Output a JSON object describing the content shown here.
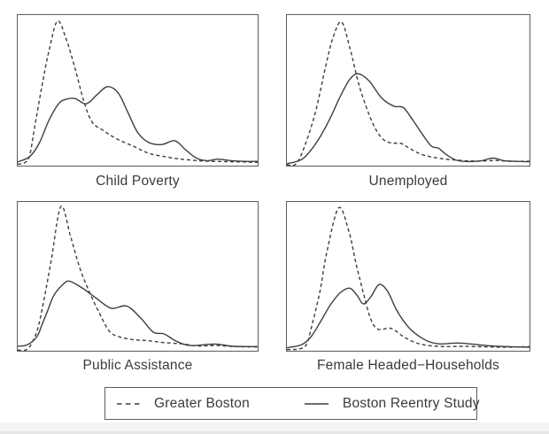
{
  "figure": {
    "background": "#ffffff",
    "colors": {
      "line": "#3e3e3e",
      "frame": "#5c5c5c",
      "text": "#3a3a3a",
      "footer_band": "#f5f3f4",
      "footer_edge": "#e8e6e7"
    },
    "legend": {
      "entries": [
        {
          "label": "Greater Boston",
          "style": "dashed"
        },
        {
          "label": "Boston Reentry Study",
          "style": "solid"
        }
      ]
    }
  },
  "chart_data": [
    {
      "type": "line",
      "title": "Child Poverty",
      "xlabel": "",
      "ylabel": "",
      "axes": "hidden (framed density panel, normalized 0-1 coords, y = relative density height)",
      "series": [
        {
          "name": "Greater Boston",
          "style": "dashed",
          "points": [
            [
              0,
              0.01
            ],
            [
              0.03,
              0.02
            ],
            [
              0.05,
              0.07
            ],
            [
              0.07,
              0.25
            ],
            [
              0.1,
              0.52
            ],
            [
              0.13,
              0.76
            ],
            [
              0.165,
              0.96
            ],
            [
              0.2,
              0.85
            ],
            [
              0.24,
              0.64
            ],
            [
              0.275,
              0.43
            ],
            [
              0.31,
              0.29
            ],
            [
              0.36,
              0.23
            ],
            [
              0.41,
              0.18
            ],
            [
              0.48,
              0.13
            ],
            [
              0.55,
              0.08
            ],
            [
              0.63,
              0.055
            ],
            [
              0.7,
              0.04
            ],
            [
              0.78,
              0.03
            ],
            [
              0.86,
              0.027
            ],
            [
              0.93,
              0.025
            ],
            [
              1,
              0.022
            ]
          ]
        },
        {
          "name": "Boston Reentry Study",
          "style": "solid",
          "points": [
            [
              0,
              0.025
            ],
            [
              0.05,
              0.06
            ],
            [
              0.09,
              0.15
            ],
            [
              0.13,
              0.3
            ],
            [
              0.17,
              0.41
            ],
            [
              0.2,
              0.44
            ],
            [
              0.24,
              0.445
            ],
            [
              0.285,
              0.41
            ],
            [
              0.33,
              0.47
            ],
            [
              0.375,
              0.525
            ],
            [
              0.42,
              0.48
            ],
            [
              0.46,
              0.35
            ],
            [
              0.5,
              0.22
            ],
            [
              0.545,
              0.155
            ],
            [
              0.6,
              0.14
            ],
            [
              0.655,
              0.165
            ],
            [
              0.7,
              0.105
            ],
            [
              0.745,
              0.05
            ],
            [
              0.79,
              0.033
            ],
            [
              0.835,
              0.043
            ],
            [
              0.89,
              0.033
            ],
            [
              0.95,
              0.028
            ],
            [
              1,
              0.028
            ]
          ]
        }
      ]
    },
    {
      "type": "line",
      "title": "Unemployed",
      "xlabel": "",
      "ylabel": "",
      "axes": "hidden (framed density panel, normalized 0-1 coords, y = relative density height)",
      "series": [
        {
          "name": "Greater Boston",
          "style": "dashed",
          "points": [
            [
              0,
              0.005
            ],
            [
              0.04,
              0.015
            ],
            [
              0.08,
              0.16
            ],
            [
              0.12,
              0.37
            ],
            [
              0.16,
              0.66
            ],
            [
              0.19,
              0.85
            ],
            [
              0.225,
              0.955
            ],
            [
              0.26,
              0.78
            ],
            [
              0.3,
              0.52
            ],
            [
              0.35,
              0.295
            ],
            [
              0.39,
              0.185
            ],
            [
              0.43,
              0.15
            ],
            [
              0.47,
              0.148
            ],
            [
              0.51,
              0.11
            ],
            [
              0.56,
              0.072
            ],
            [
              0.63,
              0.048
            ],
            [
              0.71,
              0.035
            ],
            [
              0.79,
              0.03
            ],
            [
              0.86,
              0.034
            ],
            [
              0.93,
              0.028
            ],
            [
              1,
              0.03
            ]
          ]
        },
        {
          "name": "Boston Reentry Study",
          "style": "solid",
          "points": [
            [
              0,
              0.012
            ],
            [
              0.06,
              0.04
            ],
            [
              0.1,
              0.105
            ],
            [
              0.14,
              0.2
            ],
            [
              0.18,
              0.32
            ],
            [
              0.22,
              0.46
            ],
            [
              0.26,
              0.575
            ],
            [
              0.295,
              0.61
            ],
            [
              0.34,
              0.56
            ],
            [
              0.39,
              0.45
            ],
            [
              0.44,
              0.395
            ],
            [
              0.48,
              0.385
            ],
            [
              0.52,
              0.3
            ],
            [
              0.56,
              0.205
            ],
            [
              0.595,
              0.13
            ],
            [
              0.625,
              0.115
            ],
            [
              0.66,
              0.07
            ],
            [
              0.7,
              0.035
            ],
            [
              0.75,
              0.027
            ],
            [
              0.8,
              0.032
            ],
            [
              0.85,
              0.05
            ],
            [
              0.9,
              0.032
            ],
            [
              1,
              0.026
            ]
          ]
        }
      ]
    },
    {
      "type": "line",
      "title": "Public Assistance",
      "xlabel": "",
      "ylabel": "",
      "axes": "hidden (framed density panel, normalized 0-1 coords, y = relative density height)",
      "series": [
        {
          "name": "Greater Boston",
          "style": "dashed",
          "points": [
            [
              0,
              0.005
            ],
            [
              0.04,
              0.01
            ],
            [
              0.07,
              0.09
            ],
            [
              0.09,
              0.19
            ],
            [
              0.115,
              0.39
            ],
            [
              0.14,
              0.61
            ],
            [
              0.18,
              0.97
            ],
            [
              0.22,
              0.77
            ],
            [
              0.26,
              0.55
            ],
            [
              0.3,
              0.39
            ],
            [
              0.335,
              0.27
            ],
            [
              0.38,
              0.135
            ],
            [
              0.42,
              0.095
            ],
            [
              0.48,
              0.075
            ],
            [
              0.54,
              0.068
            ],
            [
              0.61,
              0.055
            ],
            [
              0.69,
              0.045
            ],
            [
              0.75,
              0.032
            ],
            [
              0.83,
              0.035
            ],
            [
              0.9,
              0.028
            ],
            [
              1,
              0.025
            ]
          ]
        },
        {
          "name": "Boston Reentry Study",
          "style": "solid",
          "points": [
            [
              0,
              0.03
            ],
            [
              0.04,
              0.04
            ],
            [
              0.08,
              0.095
            ],
            [
              0.1,
              0.17
            ],
            [
              0.125,
              0.27
            ],
            [
              0.15,
              0.37
            ],
            [
              0.185,
              0.44
            ],
            [
              0.215,
              0.468
            ],
            [
              0.27,
              0.42
            ],
            [
              0.33,
              0.35
            ],
            [
              0.39,
              0.285
            ],
            [
              0.455,
              0.3
            ],
            [
              0.515,
              0.215
            ],
            [
              0.565,
              0.125
            ],
            [
              0.61,
              0.113
            ],
            [
              0.66,
              0.065
            ],
            [
              0.72,
              0.035
            ],
            [
              0.82,
              0.045
            ],
            [
              0.9,
              0.03
            ],
            [
              1,
              0.028
            ]
          ]
        }
      ]
    },
    {
      "type": "line",
      "title": "Female Headed−Households",
      "xlabel": "",
      "ylabel": "",
      "axes": "hidden (framed density panel, normalized 0-1 coords, y = relative density height)",
      "series": [
        {
          "name": "Greater Boston",
          "style": "dashed",
          "points": [
            [
              0,
              0.008
            ],
            [
              0.05,
              0.012
            ],
            [
              0.08,
              0.04
            ],
            [
              0.1,
              0.15
            ],
            [
              0.135,
              0.39
            ],
            [
              0.165,
              0.665
            ],
            [
              0.213,
              0.96
            ],
            [
              0.255,
              0.805
            ],
            [
              0.285,
              0.585
            ],
            [
              0.315,
              0.39
            ],
            [
              0.345,
              0.215
            ],
            [
              0.375,
              0.145
            ],
            [
              0.43,
              0.15
            ],
            [
              0.48,
              0.095
            ],
            [
              0.53,
              0.055
            ],
            [
              0.58,
              0.036
            ],
            [
              0.65,
              0.028
            ],
            [
              0.73,
              0.03
            ],
            [
              0.82,
              0.026
            ],
            [
              0.91,
              0.024
            ],
            [
              1,
              0.028
            ]
          ]
        },
        {
          "name": "Boston Reentry Study",
          "style": "solid",
          "points": [
            [
              0,
              0.02
            ],
            [
              0.06,
              0.04
            ],
            [
              0.1,
              0.095
            ],
            [
              0.14,
              0.2
            ],
            [
              0.18,
              0.31
            ],
            [
              0.22,
              0.39
            ],
            [
              0.26,
              0.42
            ],
            [
              0.29,
              0.37
            ],
            [
              0.315,
              0.315
            ],
            [
              0.345,
              0.36
            ],
            [
              0.38,
              0.445
            ],
            [
              0.415,
              0.4
            ],
            [
              0.45,
              0.28
            ],
            [
              0.49,
              0.18
            ],
            [
              0.53,
              0.115
            ],
            [
              0.58,
              0.065
            ],
            [
              0.63,
              0.046
            ],
            [
              0.7,
              0.052
            ],
            [
              0.76,
              0.045
            ],
            [
              0.83,
              0.034
            ],
            [
              0.92,
              0.027
            ],
            [
              1,
              0.024
            ]
          ]
        }
      ]
    }
  ]
}
